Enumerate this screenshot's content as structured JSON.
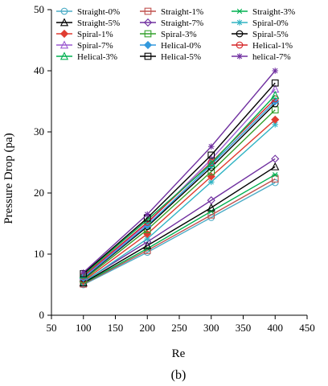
{
  "chart_data": {
    "type": "line",
    "title": "",
    "xlabel": "Re",
    "ylabel": "Pressure Drop (pa)",
    "panel_label": "(b)",
    "xlim": [
      50,
      450
    ],
    "ylim": [
      0,
      50
    ],
    "xticks": [
      50,
      100,
      150,
      200,
      250,
      300,
      350,
      400,
      450
    ],
    "yticks": [
      0,
      10,
      20,
      30,
      40,
      50
    ],
    "grid": false,
    "legend_position": "top",
    "x": [
      100,
      200,
      300,
      400
    ],
    "series": [
      {
        "name": "Straight-0%",
        "color": "#4bacc6",
        "marker": "circle",
        "values": [
          5.0,
          10.3,
          16.0,
          21.7
        ]
      },
      {
        "name": "Straight-1%",
        "color": "#c0504d",
        "marker": "square",
        "values": [
          5.1,
          10.6,
          16.4,
          22.3
        ]
      },
      {
        "name": "Straight-3%",
        "color": "#00b050",
        "marker": "star",
        "values": [
          5.2,
          10.9,
          17.0,
          23.0
        ]
      },
      {
        "name": "Straight-5%",
        "color": "#000000",
        "marker": "triangle",
        "values": [
          5.3,
          11.4,
          17.6,
          24.3
        ]
      },
      {
        "name": "Straight-7%",
        "color": "#7030a0",
        "marker": "diamond",
        "values": [
          5.5,
          12.0,
          18.8,
          25.6
        ]
      },
      {
        "name": "Spiral-0%",
        "color": "#31b4c4",
        "marker": "asterisk",
        "values": [
          5.4,
          12.5,
          21.8,
          31.2
        ]
      },
      {
        "name": "Spiral-1%",
        "color": "#e03c31",
        "marker": "diamond-filled",
        "values": [
          5.6,
          13.3,
          22.7,
          32.0
        ]
      },
      {
        "name": "Spiral-3%",
        "color": "#33a02c",
        "marker": "square",
        "values": [
          5.8,
          14.0,
          23.5,
          33.6
        ]
      },
      {
        "name": "Spiral-5%",
        "color": "#000000",
        "marker": "circle",
        "values": [
          6.0,
          14.5,
          24.2,
          34.6
        ]
      },
      {
        "name": "Spiral-7%",
        "color": "#9b59d0",
        "marker": "triangle",
        "values": [
          6.3,
          15.0,
          25.5,
          37.0
        ]
      },
      {
        "name": "Helical-0%",
        "color": "#3399dd",
        "marker": "diamond-filled",
        "values": [
          6.1,
          14.7,
          24.6,
          35.0
        ]
      },
      {
        "name": "Helical-1%",
        "color": "#d62728",
        "marker": "circle",
        "values": [
          6.4,
          15.2,
          25.0,
          35.4
        ]
      },
      {
        "name": "Helical-3%",
        "color": "#00b050",
        "marker": "triangle",
        "values": [
          6.6,
          15.6,
          24.8,
          36.0
        ]
      },
      {
        "name": "Helical-5%",
        "color": "#000000",
        "marker": "square",
        "values": [
          6.8,
          15.9,
          26.2,
          38.0
        ]
      },
      {
        "name": "helical-7%",
        "color": "#7030a0",
        "marker": "asterisk",
        "values": [
          7.0,
          16.5,
          27.6,
          40.0
        ]
      }
    ]
  }
}
